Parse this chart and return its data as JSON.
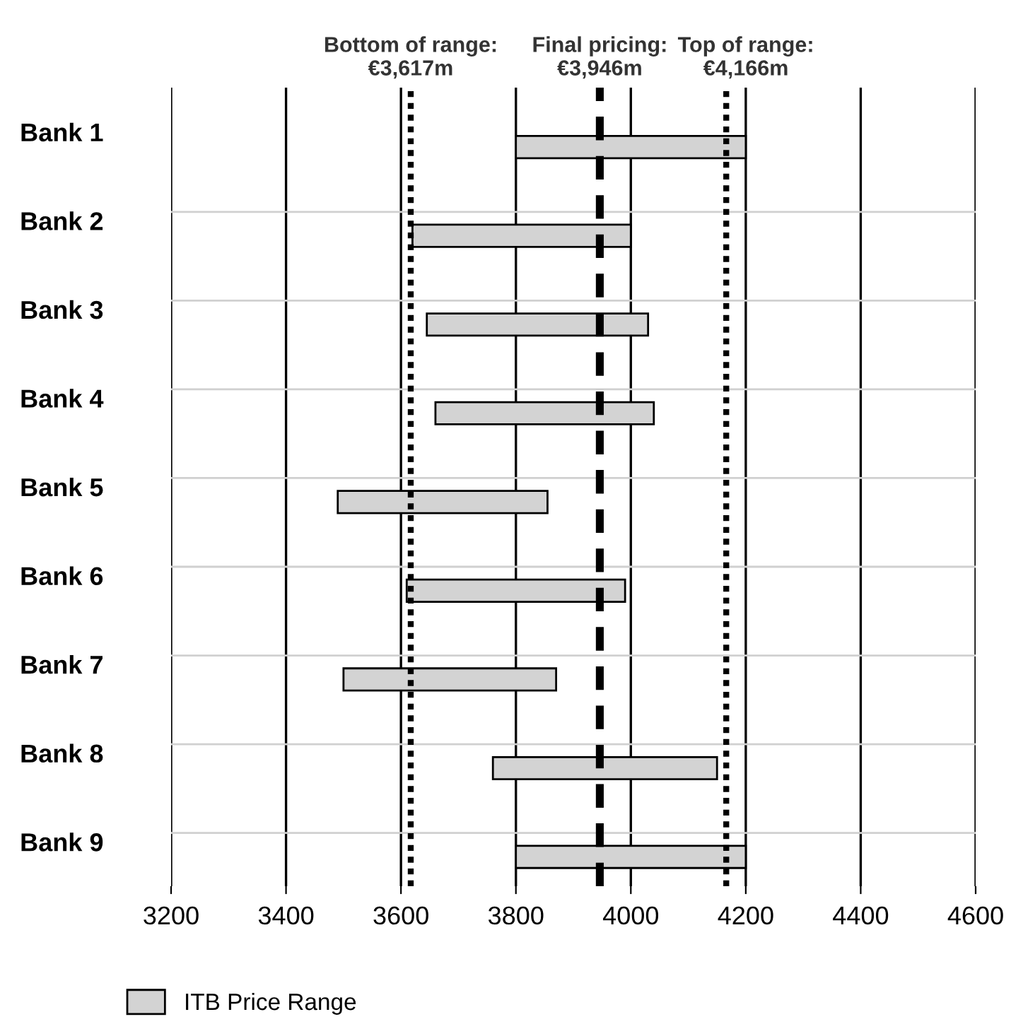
{
  "chart_data": {
    "type": "bar",
    "orientation": "horizontal",
    "categories": [
      "Bank 1",
      "Bank 2",
      "Bank 3",
      "Bank 4",
      "Bank 5",
      "Bank 6",
      "Bank 7",
      "Bank 8",
      "Bank 9"
    ],
    "series": [
      {
        "name": "ITB Price Range",
        "color": "#d3d3d3",
        "values": [
          400,
          380,
          385,
          380,
          365,
          380,
          370,
          390,
          400
        ],
        "base": [
          3800,
          3620,
          3645,
          3660,
          3490,
          3610,
          3500,
          3760,
          3800
        ]
      }
    ],
    "xlim": [
      3200,
      4600
    ],
    "xticks": [
      3200,
      3400,
      3600,
      3800,
      4000,
      4200,
      4400,
      4600
    ],
    "ref_lines": [
      {
        "axis": "x",
        "value": 3617,
        "label": "Bottom of range:\n€3,617m",
        "color": "#000000",
        "line_style": "dotted"
      },
      {
        "axis": "x",
        "value": 3946,
        "label": "Final pricing:\n€3,946m",
        "color": "#000000",
        "line_style": "dashed"
      },
      {
        "axis": "x",
        "value": 4166,
        "label": "Top of range:\n€4,166m",
        "color": "#000000",
        "line_style": "dotted"
      }
    ],
    "grid": true,
    "legend": "bottom left"
  }
}
